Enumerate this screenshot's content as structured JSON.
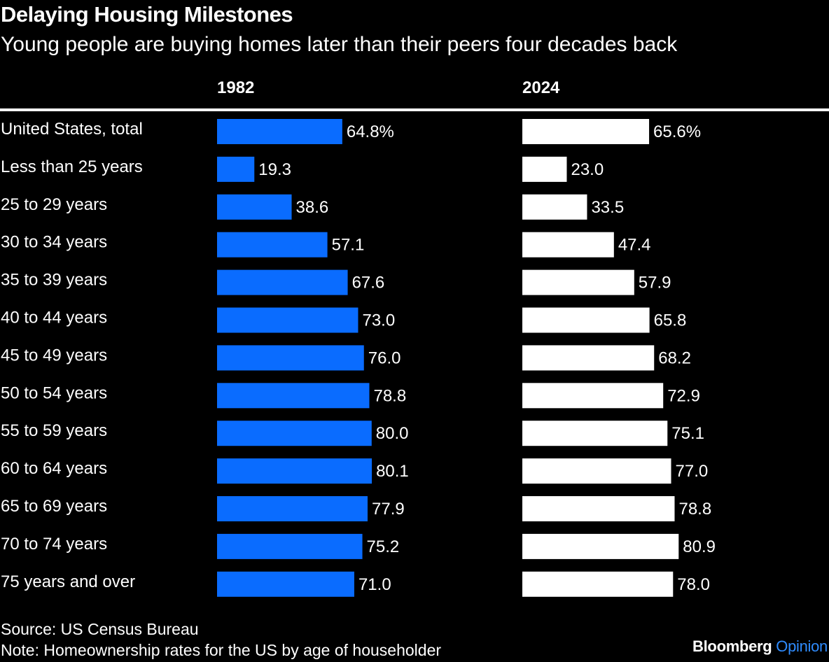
{
  "title": "Delaying Housing Milestones",
  "subtitle": "Young people are buying homes later than their peers four decades back",
  "source": "Source: US Census Bureau",
  "note": "Note: Homeownership rates for the US by age of householder",
  "brand": {
    "name": "Bloomberg",
    "section": "Opinion"
  },
  "colors": {
    "bar_1982": "#0a6cff",
    "bar_2024": "#ffffff",
    "background": "#000000",
    "brand_accent": "#2f8cff"
  },
  "chart_data": {
    "type": "bar",
    "orientation": "horizontal",
    "categories": [
      "United States, total",
      "Less than 25 years",
      "25 to 29 years",
      "30 to 34 years",
      "35 to 39 years",
      "40 to 44 years",
      "45 to 49 years",
      "50 to 54 years",
      "55 to 59 years",
      "60 to 64 years",
      "65 to 69 years",
      "70 to 74 years",
      "75 years and over"
    ],
    "series": [
      {
        "name": "1982",
        "values": [
          64.8,
          19.3,
          38.6,
          57.1,
          67.6,
          73.0,
          76.0,
          78.8,
          80.0,
          80.1,
          77.9,
          75.2,
          71.0
        ],
        "labels": [
          "64.8%",
          "19.3",
          "38.6",
          "57.1",
          "67.6",
          "73.0",
          "76.0",
          "78.8",
          "80.0",
          "80.1",
          "77.9",
          "75.2",
          "71.0"
        ]
      },
      {
        "name": "2024",
        "values": [
          65.6,
          23.0,
          33.5,
          47.4,
          57.9,
          65.8,
          68.2,
          72.9,
          75.1,
          77.0,
          78.8,
          80.9,
          78.0
        ],
        "labels": [
          "65.6%",
          "23.0",
          "33.5",
          "47.4",
          "57.9",
          "65.8",
          "68.2",
          "72.9",
          "75.1",
          "77.0",
          "78.8",
          "80.9",
          "78.0"
        ]
      }
    ],
    "xlim": [
      0,
      100
    ],
    "grid": false,
    "legend": "column headers"
  }
}
